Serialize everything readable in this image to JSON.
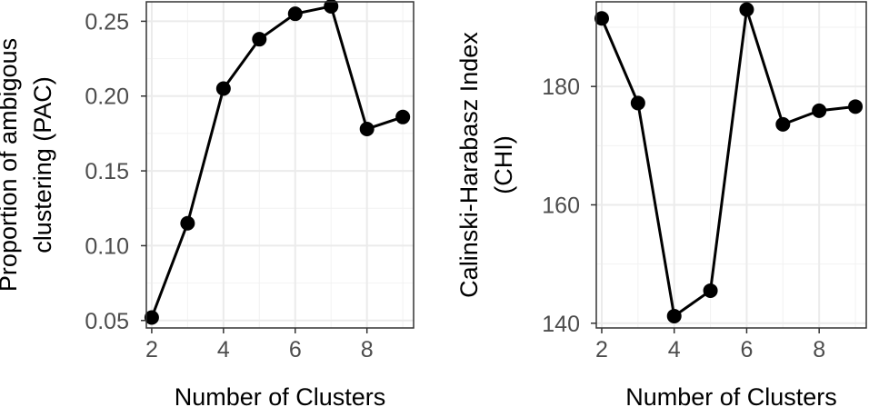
{
  "chart_data": [
    {
      "type": "line",
      "xlabel": "Number of Clusters",
      "ylabel_lines": [
        "Proportion of ambigous",
        "clustering (PAC)"
      ],
      "x": [
        2,
        3,
        4,
        5,
        6,
        7,
        8,
        9
      ],
      "values": [
        0.052,
        0.115,
        0.205,
        0.238,
        0.255,
        0.26,
        0.178,
        0.186
      ],
      "xlim": [
        1.85,
        9.3
      ],
      "ylim": [
        0.045,
        0.263
      ],
      "xticks": [
        2,
        4,
        6,
        8
      ],
      "xtick_labels": [
        "2",
        "4",
        "6",
        "8"
      ],
      "yticks": [
        0.05,
        0.1,
        0.15,
        0.2,
        0.25
      ],
      "ytick_labels": [
        "0.05",
        "0.10",
        "0.15",
        "0.20",
        "0.25"
      ],
      "grid": true
    },
    {
      "type": "line",
      "xlabel": "Number of Clusters",
      "ylabel_lines": [
        "Calinski-Harabasz Index",
        "(CHI)"
      ],
      "x": [
        2,
        3,
        4,
        5,
        6,
        7,
        8,
        9
      ],
      "values": [
        191.5,
        177.2,
        141.2,
        145.5,
        193.0,
        173.6,
        175.9,
        176.6
      ],
      "xlim": [
        1.85,
        9.3
      ],
      "ylim": [
        139.2,
        194.3
      ],
      "xticks": [
        2,
        4,
        6,
        8
      ],
      "xtick_labels": [
        "2",
        "4",
        "6",
        "8"
      ],
      "yticks": [
        140,
        160,
        180
      ],
      "ytick_labels": [
        "140",
        "160",
        "180"
      ],
      "grid": true
    }
  ]
}
